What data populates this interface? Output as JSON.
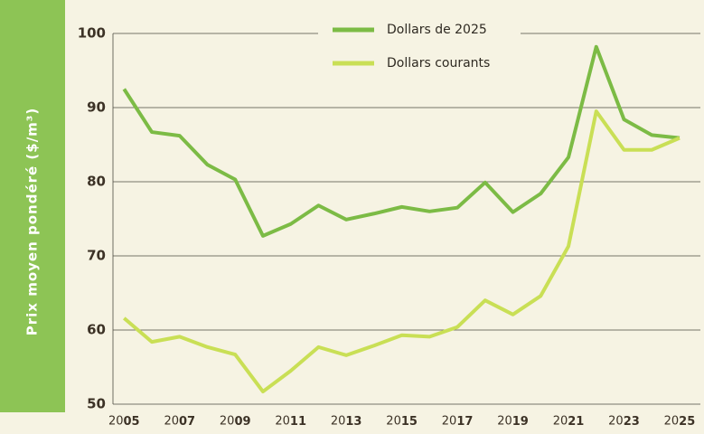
{
  "chart_data": {
    "type": "line",
    "y_label": "Prix moyen pondéré ($/m³)",
    "x": [
      2005,
      2006,
      2007,
      2008,
      2009,
      2010,
      2011,
      2012,
      2013,
      2014,
      2015,
      2016,
      2017,
      2018,
      2019,
      2020,
      2021,
      2022,
      2023,
      2024,
      2025
    ],
    "series": [
      {
        "name": "Dollars de 2025",
        "color": "#7cbb45",
        "values": [
          92.5,
          86.7,
          86.2,
          82.3,
          80.3,
          72.7,
          74.3,
          76.8,
          74.9,
          75.7,
          76.6,
          76.0,
          76.5,
          79.9,
          75.9,
          78.4,
          83.3,
          98.2,
          88.4,
          86.3,
          85.9
        ]
      },
      {
        "name": "Dollars courants",
        "color": "#c9df55",
        "values": [
          61.6,
          58.4,
          59.1,
          57.7,
          56.7,
          51.7,
          54.5,
          57.7,
          56.6,
          57.9,
          59.3,
          59.1,
          60.4,
          64.0,
          62.1,
          64.6,
          71.3,
          89.5,
          84.3,
          84.3,
          85.9
        ]
      }
    ],
    "xlim": [
      2004.6,
      2025.75
    ],
    "xticks": [
      2005,
      2007,
      2009,
      2011,
      2013,
      2015,
      2017,
      2019,
      2021,
      2023,
      2025
    ],
    "ylim": [
      50,
      100
    ],
    "yticks": [
      50,
      60,
      70,
      80,
      90,
      100
    ],
    "grid": true,
    "legend": "top"
  }
}
